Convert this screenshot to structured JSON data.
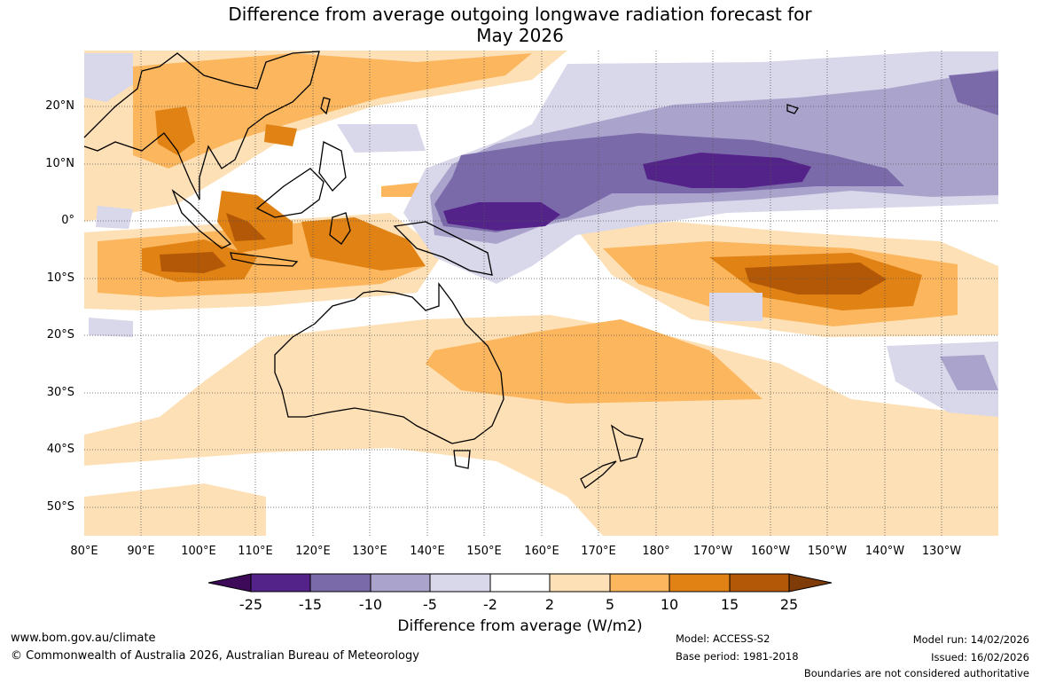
{
  "title_line1": "Difference from average outgoing longwave radiation forecast for",
  "title_line2": "May 2026",
  "lat_labels": [
    "20°N",
    "10°N",
    "0°",
    "10°S",
    "20°S",
    "30°S",
    "40°S",
    "50°S"
  ],
  "lon_labels": [
    "80°E",
    "90°E",
    "100°E",
    "110°E",
    "120°E",
    "130°E",
    "140°E",
    "150°E",
    "160°E",
    "170°E",
    "180°",
    "170°W",
    "160°W",
    "150°W",
    "140°W",
    "130°W"
  ],
  "colorbar": {
    "labels": [
      "-25",
      "-15",
      "-10",
      "-5",
      "-2",
      "2",
      "5",
      "10",
      "15",
      "25"
    ],
    "colors": [
      "#3d0a59",
      "#54238a",
      "#7b6aa9",
      "#aaa4cc",
      "#d9d7ea",
      "#ffffff",
      "#fde0b5",
      "#fbb65e",
      "#e08214",
      "#b35806",
      "#7f3b08"
    ],
    "title": "Difference from average (W/m2)"
  },
  "footer": {
    "url": "www.bom.gov.au/climate",
    "copyright": "© Commonwealth of Australia 2026, Australian Bureau of Meteorology",
    "model": "Model: ACCESS-S2",
    "base_period": "Base period: 1981-2018",
    "model_run": "Model run: 14/02/2026",
    "issued": "Issued: 16/02/2026",
    "disclaimer": "Boundaries are not considered authoritative"
  }
}
